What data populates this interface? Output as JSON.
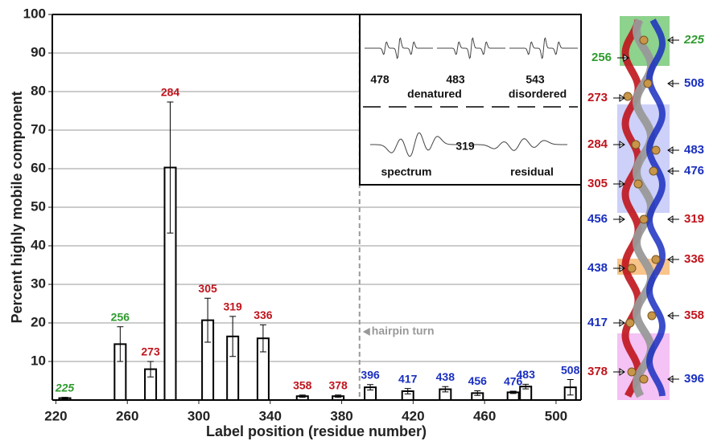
{
  "chart_data": {
    "type": "bar",
    "x_label": "Label position (residue number)",
    "y_label": "Percent highly mobile component",
    "x": [
      225,
      256,
      273,
      284,
      305,
      319,
      336,
      358,
      378,
      396,
      417,
      438,
      456,
      476,
      483,
      508
    ],
    "values": [
      0.5,
      14.5,
      8,
      60.3,
      20.7,
      16.5,
      16,
      1,
      1,
      3.3,
      2.3,
      2.8,
      1.8,
      2,
      3.5,
      3.3
    ],
    "errors": [
      0.2,
      4.5,
      2,
      17,
      5.7,
      5.2,
      3.5,
      0.3,
      0.3,
      0.7,
      0.7,
      0.7,
      0.6,
      0.3,
      0.6,
      2
    ],
    "label_colors": [
      "#2e9a2e",
      "#2e9a2e",
      "#c0141c",
      "#c0141c",
      "#c0141c",
      "#c0141c",
      "#c0141c",
      "#c0141c",
      "#c0141c",
      "#1a2fc0",
      "#1a2fc0",
      "#1a2fc0",
      "#1a2fc0",
      "#1a2fc0",
      "#1a2fc0",
      "#1a2fc0"
    ],
    "italic_labels": [
      225
    ],
    "bar_color": "#ffffff",
    "xlim": [
      218,
      514
    ],
    "xticks": [
      220,
      260,
      300,
      340,
      380,
      420,
      460,
      500
    ],
    "ylim": [
      0,
      100
    ],
    "yticks": [
      10,
      20,
      30,
      40,
      50,
      60,
      70,
      80,
      90,
      100
    ],
    "grid": true,
    "annotation": {
      "text": "hairpin turn",
      "x": 390
    },
    "inset": {
      "labels": [
        "478",
        "483",
        "543",
        "denatured",
        "disordered",
        "spectrum",
        "319",
        "residual"
      ]
    },
    "structure_labels": [
      {
        "text": "225",
        "color": "#2e9a2e"
      },
      {
        "text": "256",
        "color": "#2e9a2e"
      },
      {
        "text": "508",
        "color": "#1a2fc0"
      },
      {
        "text": "273",
        "color": "#c0141c"
      },
      {
        "text": "284",
        "color": "#c0141c"
      },
      {
        "text": "483",
        "color": "#1a2fc0"
      },
      {
        "text": "476",
        "color": "#1a2fc0"
      },
      {
        "text": "305",
        "color": "#c0141c"
      },
      {
        "text": "456",
        "color": "#1a2fc0"
      },
      {
        "text": "319",
        "color": "#c0141c"
      },
      {
        "text": "438",
        "color": "#1a2fc0"
      },
      {
        "text": "336",
        "color": "#c0141c"
      },
      {
        "text": "417",
        "color": "#1a2fc0"
      },
      {
        "text": "358",
        "color": "#c0141c"
      },
      {
        "text": "378",
        "color": "#c0141c"
      },
      {
        "text": "396",
        "color": "#1a2fc0"
      }
    ]
  }
}
